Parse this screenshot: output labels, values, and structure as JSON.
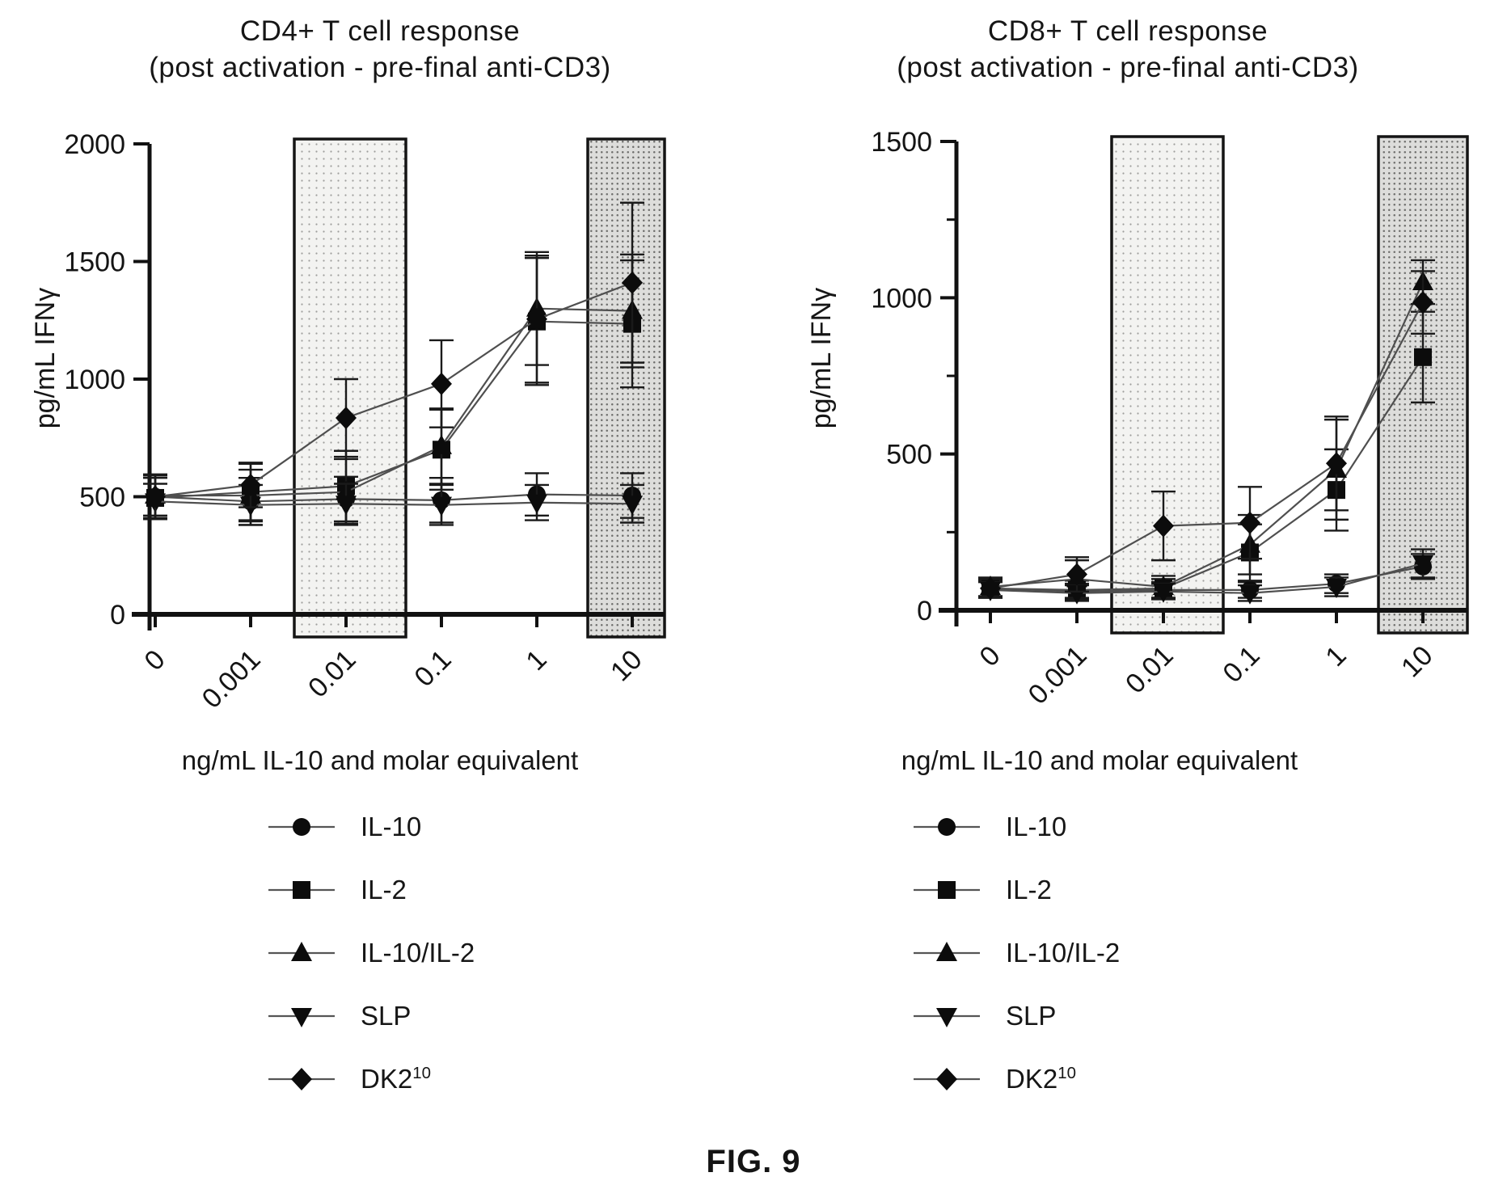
{
  "figure": {
    "caption": "FIG. 9"
  },
  "chart_data": [
    {
      "type": "line",
      "title_line1": "CD4+ T cell response",
      "title_line2": "(post activation - pre-final anti-CD3)",
      "ylabel": "pg/mL IFNγ",
      "xlabel": "ng/mL IL-10 and molar equivalent",
      "categories": [
        "0",
        "0.001",
        "0.01",
        "0.1",
        "1",
        "10"
      ],
      "ylim": [
        0,
        2000
      ],
      "yticks": [
        0,
        500,
        1000,
        1500,
        2000
      ],
      "yminor": [],
      "grid": false,
      "legend_position": "below",
      "bands": [
        {
          "category": "0.01",
          "style": "light"
        },
        {
          "category": "10",
          "style": "dark"
        }
      ],
      "series": [
        {
          "name": "IL-10",
          "marker": "circle",
          "values": [
            500,
            480,
            490,
            485,
            510,
            505
          ],
          "errors": [
            90,
            100,
            95,
            95,
            90,
            95
          ]
        },
        {
          "name": "IL-2",
          "marker": "square",
          "values": [
            495,
            520,
            545,
            700,
            1245,
            1235
          ],
          "errors": [
            85,
            120,
            150,
            170,
            270,
            270
          ]
        },
        {
          "name": "IL-10/IL-2",
          "marker": "triangle-up",
          "values": [
            505,
            505,
            520,
            715,
            1300,
            1290
          ],
          "errors": [
            85,
            110,
            140,
            160,
            240,
            240
          ]
        },
        {
          "name": "SLP",
          "marker": "triangle-down",
          "values": [
            480,
            465,
            470,
            465,
            475,
            470
          ],
          "errors": [
            75,
            85,
            85,
            85,
            75,
            80
          ]
        },
        {
          "name": "DK2",
          "name_sup": "10",
          "marker": "diamond",
          "values": [
            500,
            550,
            835,
            980,
            1255,
            1410
          ],
          "errors": [
            95,
            95,
            165,
            185,
            270,
            340
          ]
        }
      ]
    },
    {
      "type": "line",
      "title_line1": "CD8+ T cell response",
      "title_line2": "(post activation - pre-final anti-CD3)",
      "ylabel": "pg/mL IFNγ",
      "xlabel": "ng/mL IL-10 and molar equivalent",
      "categories": [
        "0",
        "0.001",
        "0.01",
        "0.1",
        "1",
        "10"
      ],
      "ylim": [
        0,
        1500
      ],
      "yticks": [
        0,
        500,
        1000,
        1500
      ],
      "yminor": [
        250,
        750,
        1250
      ],
      "grid": false,
      "legend_position": "below",
      "bands": [
        {
          "category": "0.01",
          "style": "light"
        },
        {
          "category": "10",
          "style": "dark"
        }
      ],
      "series": [
        {
          "name": "IL-10",
          "marker": "circle",
          "values": [
            70,
            60,
            65,
            65,
            85,
            140
          ],
          "errors": [
            25,
            25,
            25,
            25,
            30,
            40
          ]
        },
        {
          "name": "IL-2",
          "marker": "square",
          "values": [
            70,
            65,
            70,
            185,
            385,
            810
          ],
          "errors": [
            25,
            30,
            30,
            90,
            130,
            145
          ]
        },
        {
          "name": "IL-10/IL-2",
          "marker": "triangle-up",
          "values": [
            75,
            100,
            75,
            210,
            450,
            1050
          ],
          "errors": [
            30,
            60,
            35,
            95,
            160,
            70
          ]
        },
        {
          "name": "SLP",
          "marker": "triangle-down",
          "values": [
            65,
            55,
            60,
            55,
            75,
            150
          ],
          "errors": [
            25,
            25,
            25,
            25,
            30,
            45
          ]
        },
        {
          "name": "DK2",
          "name_sup": "10",
          "marker": "diamond",
          "values": [
            70,
            115,
            270,
            280,
            470,
            985
          ],
          "errors": [
            30,
            55,
            110,
            115,
            150,
            100
          ]
        }
      ]
    }
  ]
}
